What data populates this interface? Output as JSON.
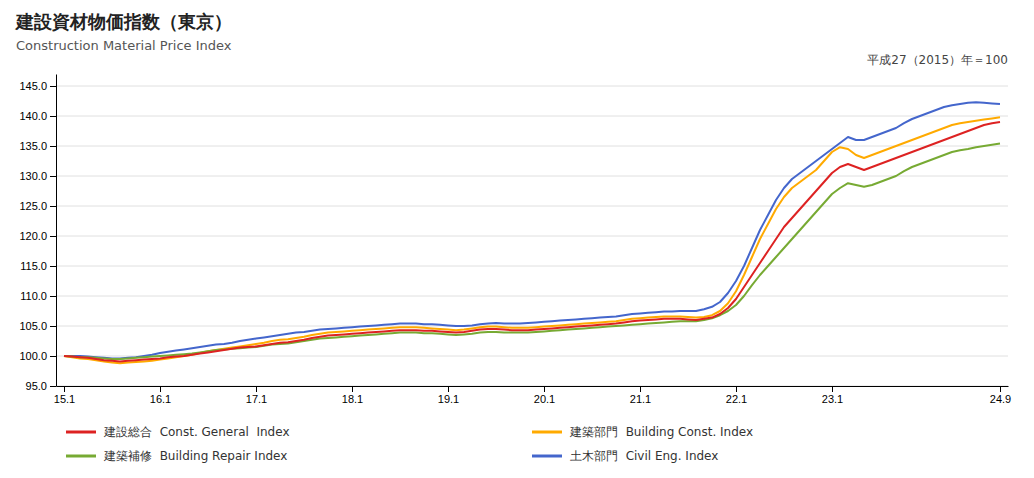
{
  "chart_data": {
    "type": "line",
    "title": "建設資材物価指数（東京）",
    "subtitle": "Construction Material Price Index",
    "annotations": [
      {
        "text": "平成27（2015）年＝100"
      }
    ],
    "categories": [
      "15.1",
      null,
      null,
      null,
      null,
      null,
      null,
      null,
      null,
      null,
      null,
      null,
      "16.1",
      null,
      null,
      null,
      null,
      null,
      null,
      null,
      null,
      null,
      null,
      null,
      "17.1",
      null,
      null,
      null,
      null,
      null,
      null,
      null,
      null,
      null,
      null,
      null,
      "18.1",
      null,
      null,
      null,
      null,
      null,
      null,
      null,
      null,
      null,
      null,
      null,
      "19.1",
      null,
      null,
      null,
      null,
      null,
      null,
      null,
      null,
      null,
      null,
      null,
      "20.1",
      null,
      null,
      null,
      null,
      null,
      null,
      null,
      null,
      null,
      null,
      null,
      "21.1",
      null,
      null,
      null,
      null,
      null,
      null,
      null,
      null,
      null,
      null,
      null,
      "22.1",
      null,
      null,
      null,
      null,
      null,
      null,
      null,
      null,
      null,
      null,
      null,
      "23.1",
      null,
      null,
      null,
      null,
      null,
      null,
      null,
      null,
      null,
      null,
      null,
      null,
      null,
      null,
      null,
      null,
      null,
      null,
      null,
      null,
      "24.9"
    ],
    "series": [
      {
        "name": "建設総合  Const. General  Index",
        "color": "#dd2222",
        "values": [
          100.0,
          99.9,
          99.8,
          99.7,
          99.5,
          99.3,
          99.2,
          99.1,
          99.2,
          99.3,
          99.4,
          99.5,
          99.6,
          99.8,
          99.9,
          100.0,
          100.2,
          100.4,
          100.6,
          100.8,
          101.0,
          101.2,
          101.4,
          101.5,
          101.6,
          101.8,
          102.0,
          102.2,
          102.3,
          102.5,
          102.7,
          103.0,
          103.2,
          103.4,
          103.5,
          103.6,
          103.7,
          103.8,
          103.9,
          104.0,
          104.1,
          104.2,
          104.3,
          104.3,
          104.3,
          104.2,
          104.2,
          104.1,
          104.0,
          103.9,
          104.0,
          104.2,
          104.4,
          104.5,
          104.5,
          104.4,
          104.3,
          104.3,
          104.3,
          104.4,
          104.5,
          104.6,
          104.7,
          104.8,
          104.9,
          105.0,
          105.1,
          105.2,
          105.3,
          105.4,
          105.6,
          105.8,
          105.9,
          106.0,
          106.1,
          106.2,
          106.2,
          106.2,
          106.1,
          106.0,
          106.2,
          106.4,
          107.0,
          108.0,
          109.5,
          111.5,
          113.5,
          115.5,
          117.5,
          119.5,
          121.5,
          123.0,
          124.5,
          126.0,
          127.5,
          129.0,
          130.5,
          131.5,
          132.0,
          131.5,
          131.0,
          131.5,
          132.0,
          132.5,
          133.0,
          133.5,
          134.0,
          134.5,
          135.0,
          135.5,
          136.0,
          136.5,
          137.0,
          137.5,
          138.0,
          138.5,
          138.8,
          139.0
        ]
      },
      {
        "name": "建築補修  Building Repair Index",
        "color": "#77aa33",
        "values": [
          100.0,
          99.9,
          99.8,
          99.8,
          99.7,
          99.6,
          99.5,
          99.5,
          99.6,
          99.7,
          99.8,
          99.9,
          100.0,
          100.1,
          100.2,
          100.3,
          100.4,
          100.6,
          100.8,
          101.0,
          101.1,
          101.2,
          101.3,
          101.4,
          101.5,
          101.7,
          101.9,
          102.0,
          102.1,
          102.3,
          102.5,
          102.7,
          102.9,
          103.0,
          103.1,
          103.2,
          103.3,
          103.4,
          103.5,
          103.6,
          103.7,
          103.8,
          103.9,
          103.9,
          103.9,
          103.8,
          103.8,
          103.7,
          103.6,
          103.5,
          103.6,
          103.7,
          103.9,
          104.0,
          104.0,
          103.9,
          103.9,
          103.9,
          103.9,
          104.0,
          104.1,
          104.2,
          104.3,
          104.4,
          104.5,
          104.6,
          104.7,
          104.8,
          104.9,
          105.0,
          105.1,
          105.2,
          105.3,
          105.4,
          105.5,
          105.6,
          105.7,
          105.8,
          105.8,
          105.8,
          106.0,
          106.3,
          106.8,
          107.5,
          108.5,
          110.0,
          111.8,
          113.5,
          115.0,
          116.5,
          118.0,
          119.5,
          121.0,
          122.5,
          124.0,
          125.5,
          127.0,
          128.0,
          128.8,
          128.5,
          128.2,
          128.5,
          129.0,
          129.5,
          130.0,
          130.8,
          131.5,
          132.0,
          132.5,
          133.0,
          133.5,
          134.0,
          134.3,
          134.5,
          134.8,
          135.0,
          135.2,
          135.4
        ]
      },
      {
        "name": "建築部門  Building Const. Index",
        "color": "#ffaa00",
        "values": [
          100.0,
          99.8,
          99.6,
          99.5,
          99.3,
          99.1,
          98.9,
          98.8,
          98.9,
          99.0,
          99.1,
          99.2,
          99.4,
          99.6,
          99.8,
          100.0,
          100.2,
          100.5,
          100.8,
          101.0,
          101.2,
          101.4,
          101.6,
          101.8,
          102.0,
          102.2,
          102.5,
          102.7,
          102.8,
          103.0,
          103.2,
          103.5,
          103.7,
          103.9,
          104.0,
          104.1,
          104.2,
          104.3,
          104.4,
          104.5,
          104.6,
          104.7,
          104.8,
          104.8,
          104.8,
          104.7,
          104.6,
          104.5,
          104.4,
          104.3,
          104.4,
          104.6,
          104.8,
          104.9,
          104.9,
          104.8,
          104.7,
          104.7,
          104.7,
          104.8,
          104.9,
          105.0,
          105.1,
          105.2,
          105.3,
          105.4,
          105.5,
          105.6,
          105.7,
          105.8,
          106.0,
          106.2,
          106.3,
          106.4,
          106.5,
          106.6,
          106.6,
          106.6,
          106.5,
          106.4,
          106.5,
          106.8,
          107.5,
          108.8,
          110.8,
          113.5,
          116.5,
          119.5,
          122.0,
          124.5,
          126.5,
          128.0,
          129.0,
          130.0,
          131.0,
          132.5,
          134.0,
          134.8,
          134.5,
          133.5,
          133.0,
          133.5,
          134.0,
          134.5,
          135.0,
          135.5,
          136.0,
          136.5,
          137.0,
          137.5,
          138.0,
          138.5,
          138.8,
          139.0,
          139.2,
          139.4,
          139.6,
          139.8
        ]
      },
      {
        "name": "土木部門  Civil Eng. Index",
        "color": "#4466cc",
        "values": [
          100.0,
          100.0,
          100.0,
          99.9,
          99.8,
          99.7,
          99.6,
          99.6,
          99.7,
          99.8,
          100.0,
          100.2,
          100.5,
          100.7,
          100.9,
          101.1,
          101.3,
          101.5,
          101.7,
          101.9,
          102.0,
          102.2,
          102.5,
          102.7,
          102.9,
          103.1,
          103.3,
          103.5,
          103.7,
          103.9,
          104.0,
          104.2,
          104.4,
          104.5,
          104.6,
          104.7,
          104.8,
          104.9,
          105.0,
          105.1,
          105.2,
          105.3,
          105.4,
          105.4,
          105.4,
          105.3,
          105.3,
          105.2,
          105.1,
          105.0,
          105.0,
          105.1,
          105.3,
          105.4,
          105.5,
          105.4,
          105.4,
          105.4,
          105.5,
          105.6,
          105.7,
          105.8,
          105.9,
          106.0,
          106.1,
          106.2,
          106.3,
          106.4,
          106.5,
          106.6,
          106.8,
          107.0,
          107.1,
          107.2,
          107.3,
          107.4,
          107.4,
          107.5,
          107.5,
          107.5,
          107.8,
          108.2,
          109.0,
          110.5,
          112.5,
          115.0,
          118.0,
          121.0,
          123.5,
          126.0,
          128.0,
          129.5,
          130.5,
          131.5,
          132.5,
          133.5,
          134.5,
          135.5,
          136.5,
          136.0,
          136.0,
          136.5,
          137.0,
          137.5,
          138.0,
          138.8,
          139.5,
          140.0,
          140.5,
          141.0,
          141.5,
          141.8,
          142.0,
          142.2,
          142.3,
          142.2,
          142.1,
          142.0
        ]
      }
    ],
    "ylim": [
      95.0,
      147.0
    ],
    "yticks": [
      {
        "value": 95.0,
        "label": "95.0"
      },
      {
        "value": 100.0,
        "label": "100.0"
      },
      {
        "value": 105.0,
        "label": "105.0"
      },
      {
        "value": 110.0,
        "label": "110.0"
      },
      {
        "value": 115.0,
        "label": "115.0"
      },
      {
        "value": 120.0,
        "label": "120.0"
      },
      {
        "value": 125.0,
        "label": "125.0"
      },
      {
        "value": 130.0,
        "label": "130.0"
      },
      {
        "value": 135.0,
        "label": "135.0"
      },
      {
        "value": 140.0,
        "label": "140.0"
      },
      {
        "value": 145.0,
        "label": "145.0"
      }
    ],
    "grid": true,
    "legend": "bottom"
  }
}
